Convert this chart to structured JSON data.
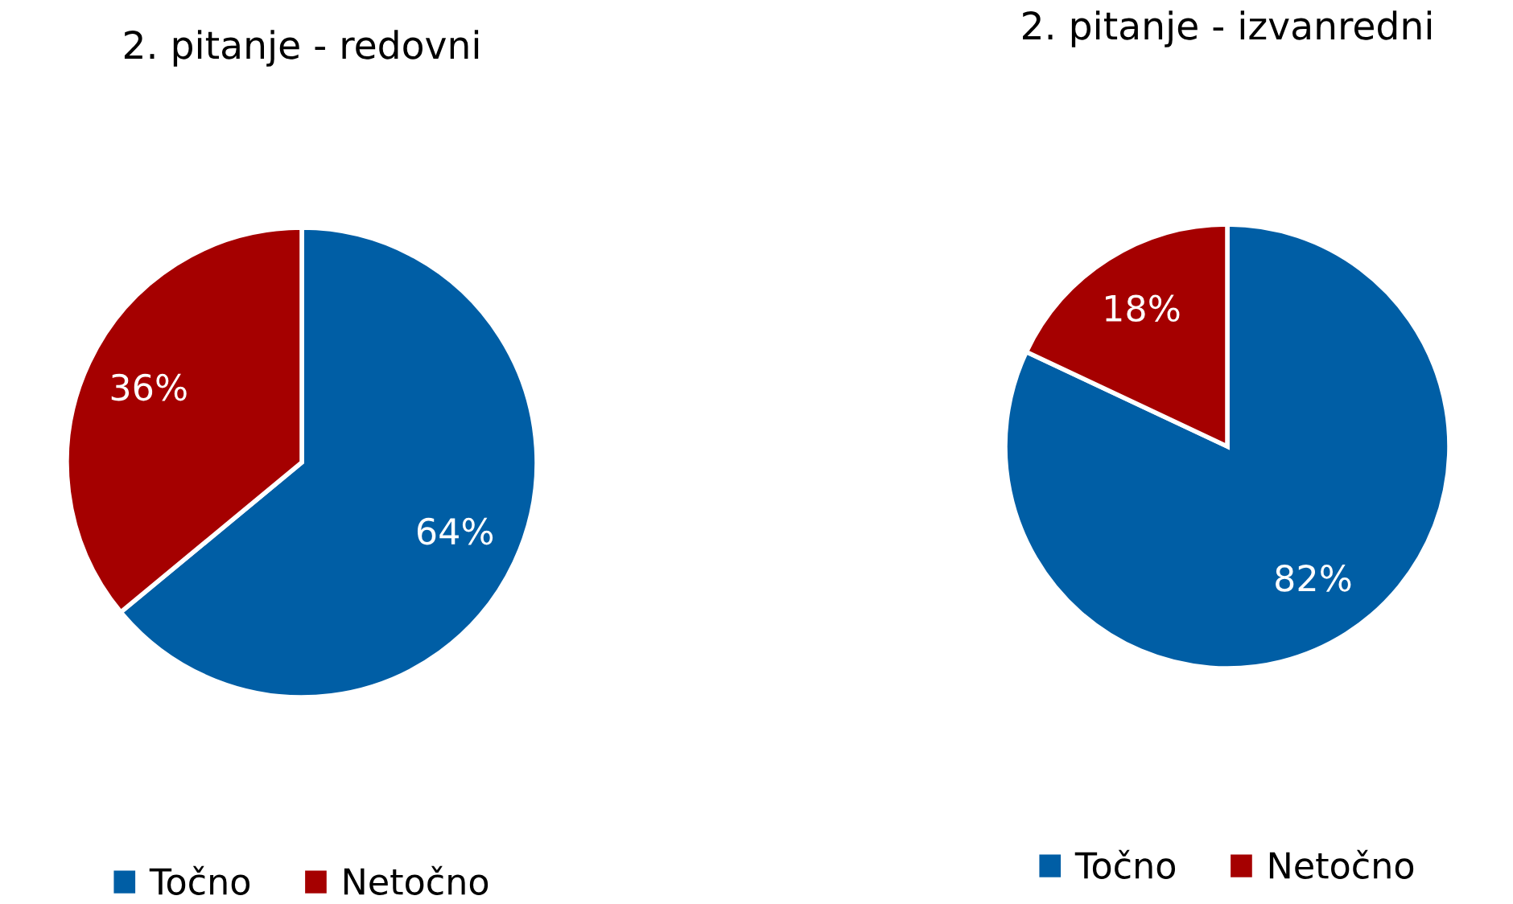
{
  "chart_data": [
    {
      "type": "pie",
      "title": "2. pitanje - redovni",
      "categories": [
        "Točno",
        "Netočno"
      ],
      "values": [
        64,
        36
      ],
      "colors": [
        "#005ea5",
        "#a50000"
      ],
      "value_labels": [
        "64%",
        "36%"
      ],
      "legend": "bottom"
    },
    {
      "type": "pie",
      "title": "2. pitanje - izvanredni",
      "categories": [
        "Točno",
        "Netočno"
      ],
      "values": [
        82,
        18
      ],
      "colors": [
        "#005ea5",
        "#a50000"
      ],
      "value_labels": [
        "82%",
        "18%"
      ],
      "legend": "bottom"
    }
  ]
}
